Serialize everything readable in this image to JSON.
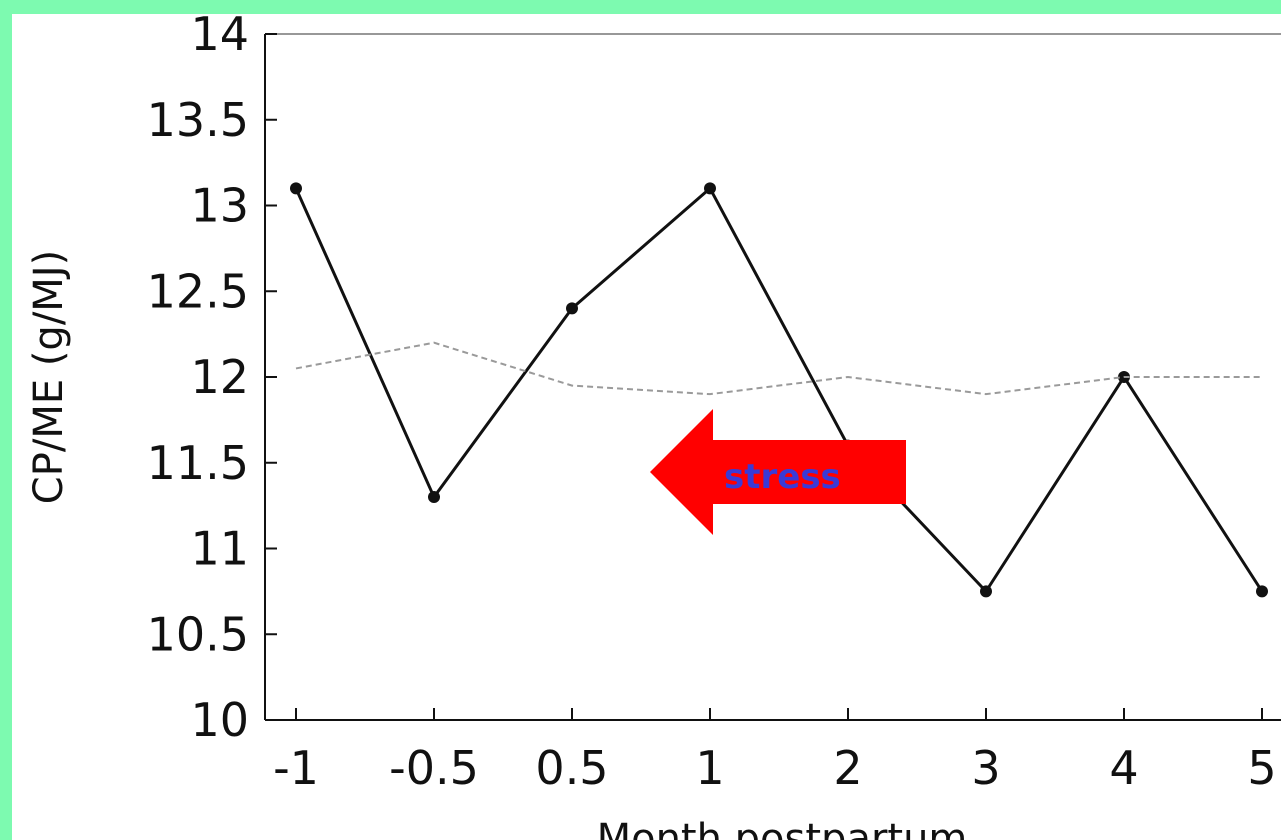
{
  "chart_data": {
    "type": "line",
    "categories": [
      "-1",
      "-0.5",
      "0.5",
      "1",
      "2",
      "3",
      "4",
      "5"
    ],
    "series": [
      {
        "values": [
          13.1,
          11.3,
          12.4,
          13.1,
          11.6,
          10.75,
          12.0,
          10.75
        ],
        "color": "#111111",
        "markers": true
      },
      {
        "values": [
          12.05,
          12.2,
          11.95,
          11.9,
          12.0,
          11.9,
          12.0,
          12.0
        ],
        "color": "#9a9a9a",
        "dashed": true,
        "markers": false
      }
    ],
    "ylabel": "CP/ME (g/MJ)",
    "xlabel": "Month postpartum",
    "ylim": [
      10,
      14
    ],
    "yticks": [
      "10",
      "10.5",
      "11",
      "11.5",
      "12",
      "12.5",
      "13",
      "13.5",
      "14"
    ],
    "grid": false,
    "annotation": {
      "text": "stress",
      "shape": "left-arrow",
      "color": "#ff0000"
    }
  }
}
